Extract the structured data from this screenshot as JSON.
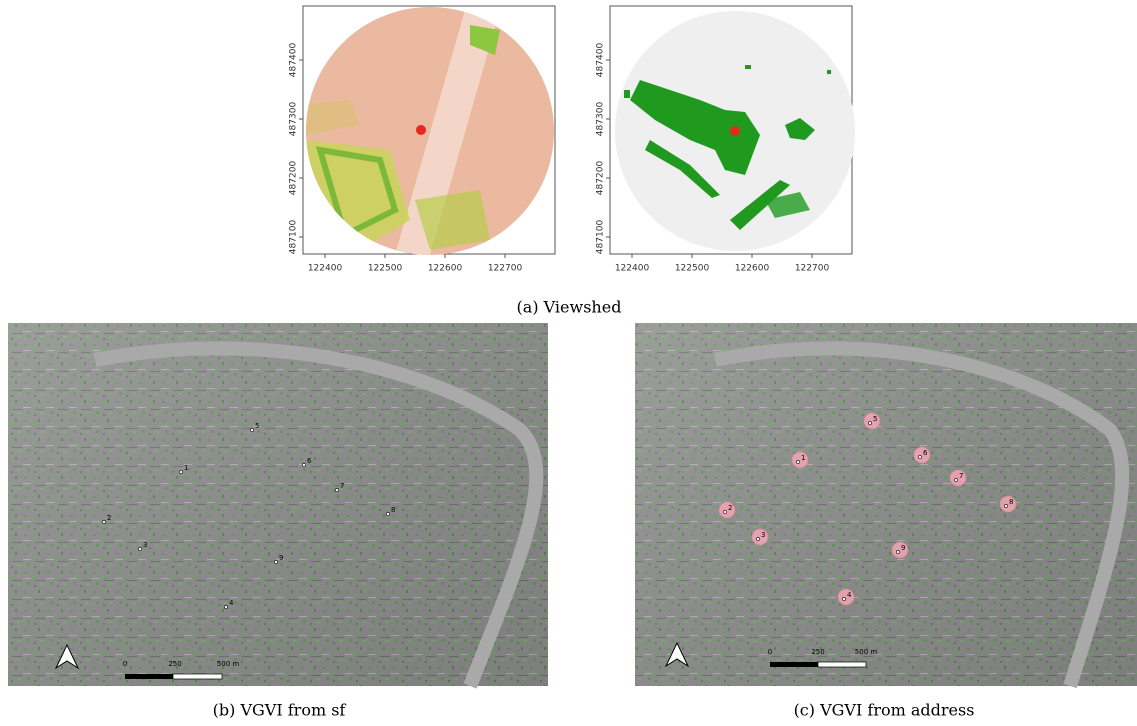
{
  "viewshed": {
    "caption": "(a) Viewshed",
    "plots": [
      {
        "xticks": [
          122400,
          122500,
          122600,
          122700
        ],
        "yticks": [
          487100,
          487200,
          487300,
          487400
        ]
      },
      {
        "xticks": [
          122400,
          122500,
          122600,
          122700
        ],
        "yticks": [
          487100,
          487200,
          487300,
          487400
        ]
      }
    ]
  },
  "maps": [
    {
      "caption": "(b) VGVI from sf",
      "point_labels": [
        "1",
        "2",
        "3",
        "4",
        "5",
        "6",
        "7",
        "8",
        "9"
      ],
      "scale_labels": [
        "0",
        "250",
        "500 m"
      ]
    },
    {
      "caption": "(c) VGVI from address",
      "point_labels": [
        "1",
        "2",
        "3",
        "4",
        "5",
        "6",
        "7",
        "8",
        "9"
      ],
      "scale_labels": [
        "0",
        "250",
        "500 m"
      ]
    }
  ]
}
